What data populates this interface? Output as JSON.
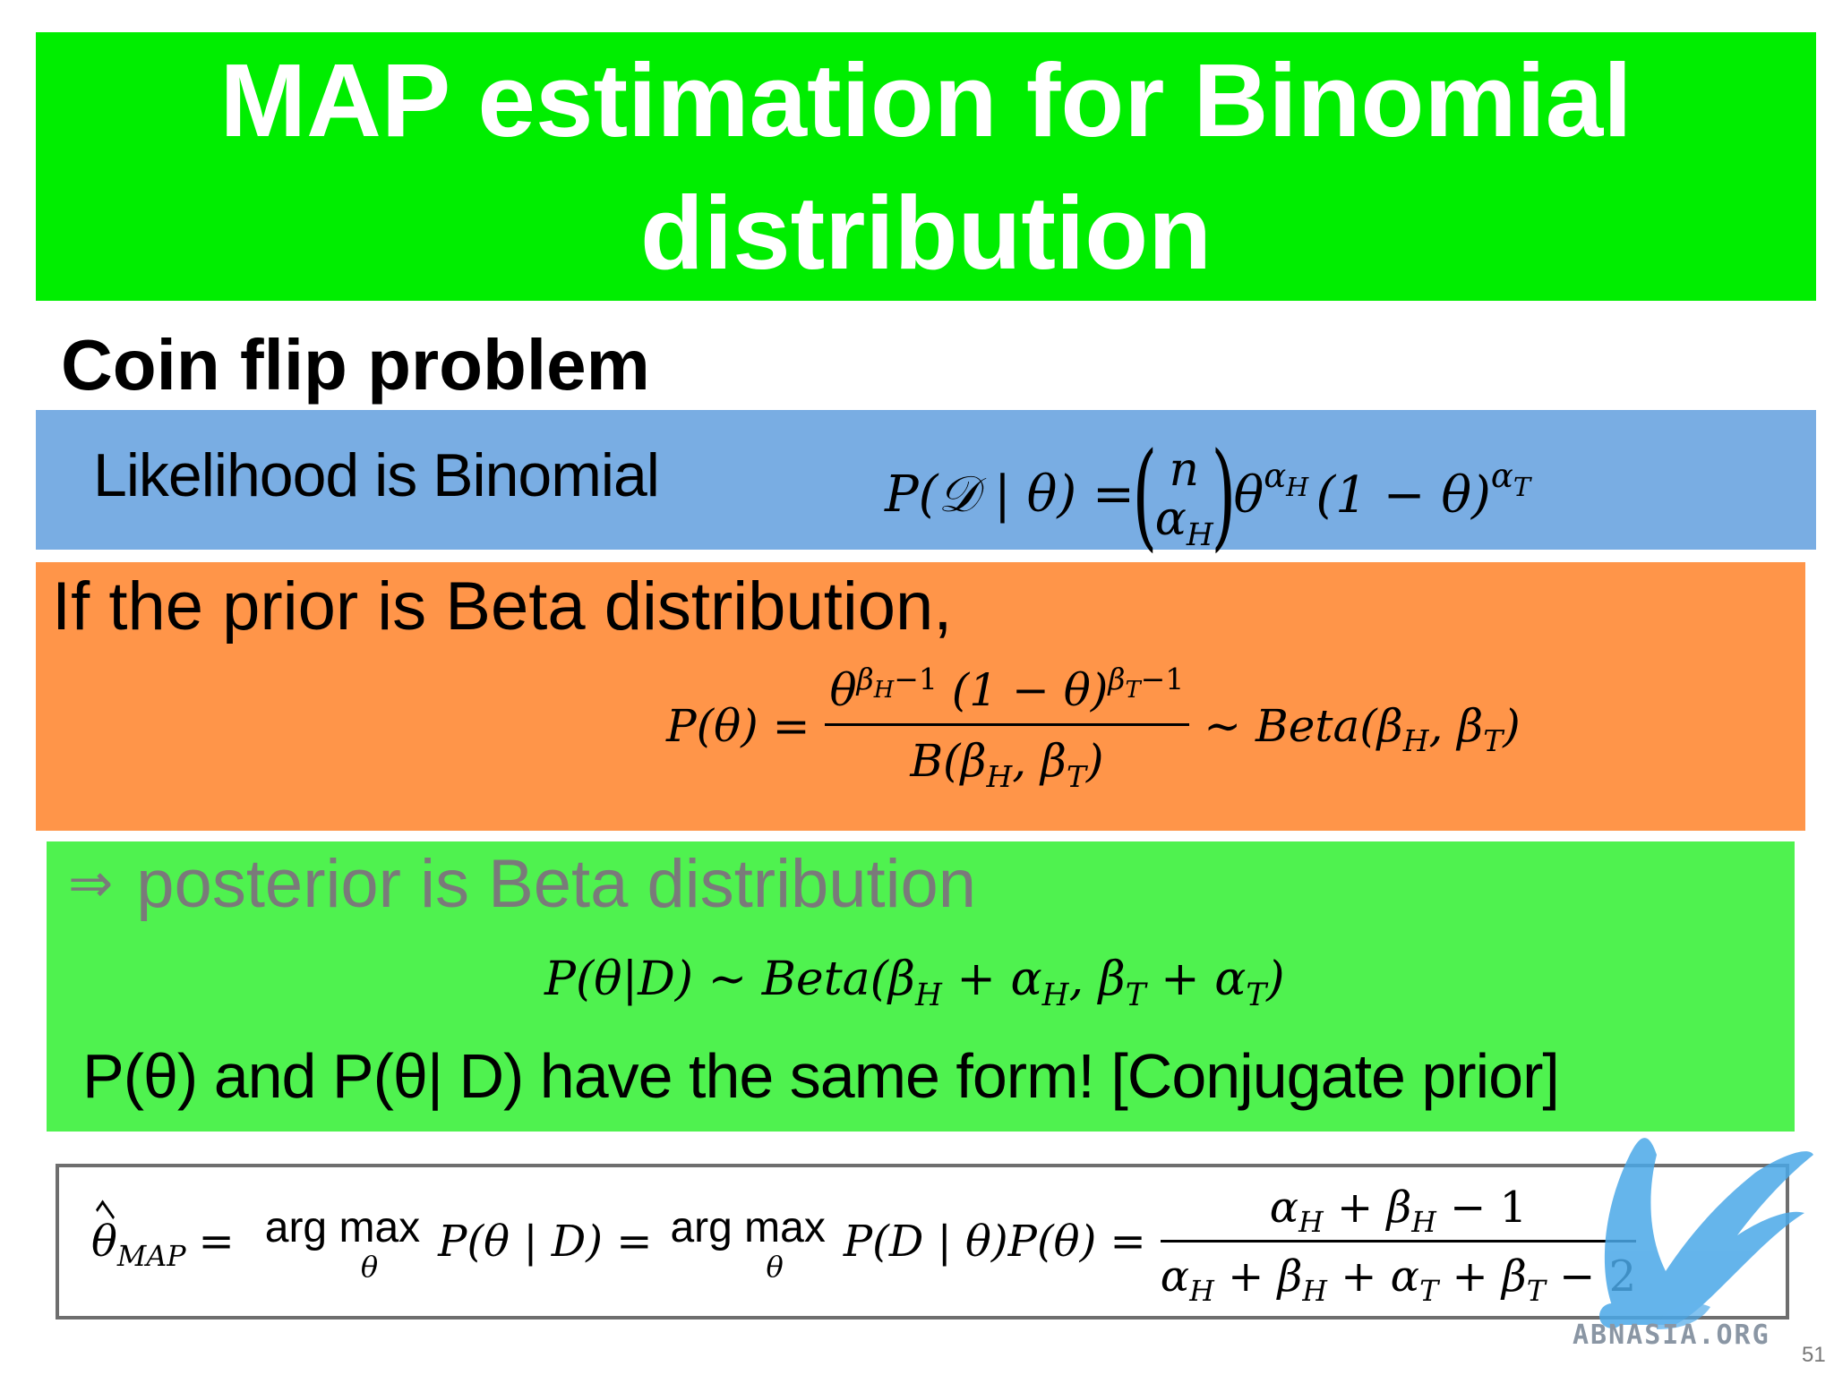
{
  "title": {
    "line1": "MAP estimation for Binomial",
    "line2": "distribution"
  },
  "section_heading": "Coin flip problem",
  "likelihood": {
    "label": "Likelihood is Binomial",
    "eq_lhs": "P(𝒟 | θ) =",
    "binom_top": "n",
    "binom_bottom_base": "α",
    "binom_bottom_sub": "H",
    "theta": "θ",
    "exp1_base": "α",
    "exp1_sub": "H",
    "mid": "(1 − θ)",
    "exp2_base": "α",
    "exp2_sub": "T"
  },
  "prior": {
    "label": "If the prior is Beta distribution,",
    "eq_lhs": "P(θ) =",
    "num_theta": "θ",
    "num_exp1_base": "β",
    "num_exp1_sub": "H",
    "num_exp1_tail": "−1",
    "num_mid": "(1 − θ)",
    "num_exp2_base": "β",
    "num_exp2_sub": "T",
    "num_exp2_tail": "−1",
    "den": "B(β",
    "den_sub1": "H",
    "den_mid": ", β",
    "den_sub2": "T",
    "den_end": ")",
    "rhs": "∼ Beta(β",
    "rhs_sub1": "H",
    "rhs_mid": ", β",
    "rhs_sub2": "T",
    "rhs_end": ")"
  },
  "posterior": {
    "arrow": "⇒",
    "label": "posterior is Beta distribution",
    "eq_a": "P(θ|D) ∼ Beta(β",
    "eq_s1": "H",
    "eq_b": " + α",
    "eq_s2": "H",
    "eq_c": ", β",
    "eq_s3": "T",
    "eq_d": " + α",
    "eq_s4": "T",
    "eq_e": ")",
    "note": "P(θ) and P(θ| D) have the same form! [Conjugate prior]"
  },
  "map": {
    "theta": "θ",
    "theta_sub": "MAP",
    "eq1": "=",
    "argmax1": "arg max",
    "argmax1_sub": "θ",
    "mid1": "P(θ | D) =",
    "argmax2": "arg max",
    "argmax2_sub": "θ",
    "mid2": "P(D | θ)P(θ) =",
    "num_a": "α",
    "num_s1": "H",
    "num_b": " + β",
    "num_s2": "H",
    "num_c": " − 1",
    "den_a": "α",
    "den_s1": "H",
    "den_b": " + β",
    "den_s2": "H",
    "den_c": " + α",
    "den_s3": "T",
    "den_d": " + β",
    "den_s4": "T",
    "den_e": " − 2"
  },
  "watermark": {
    "text": "ABNASIA.ORG",
    "icon": "griffin-logo-icon",
    "color": "#4aa8e8"
  },
  "page_number": "51",
  "colors": {
    "title_bg": "#00ee00",
    "likelihood_bg": "#79ade3",
    "prior_bg": "#ff9549",
    "posterior_bg": "#4ff24f"
  }
}
